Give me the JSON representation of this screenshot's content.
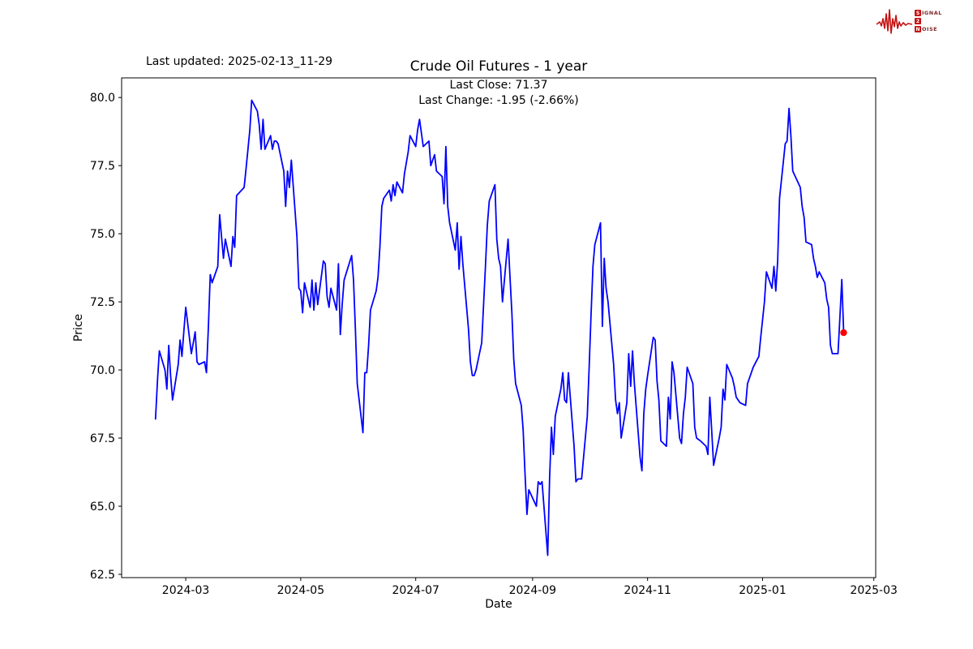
{
  "header": {
    "last_updated": "Last updated: 2025-02-13_11-29"
  },
  "logo": {
    "s": "S",
    "ignal": "IGNAL",
    "two": "2",
    "n": "N",
    "oise": "OISE",
    "color": "#c41212"
  },
  "chart_data": {
    "type": "line",
    "title": "Crude Oil Futures - 1 year",
    "annotations": {
      "last_close": "Last Close: 71.37",
      "last_change": "Last Change: -1.95 (-2.66%)"
    },
    "xlabel": "Date",
    "ylabel": "Price",
    "x_tick_labels": [
      "2024-03",
      "2024-05",
      "2024-07",
      "2024-09",
      "2024-11",
      "2025-01",
      "2025-03"
    ],
    "y_tick_values": [
      62.5,
      65.0,
      67.5,
      70.0,
      72.5,
      75.0,
      77.5,
      80.0
    ],
    "ylim": [
      62.38,
      80.72
    ],
    "xlim": [
      "2024-01-27",
      "2025-03-02"
    ],
    "grid": false,
    "legend": "none",
    "line_color": "#0000ff",
    "marker_color": "#ff0000",
    "last_close": 71.37,
    "last_change": -1.95,
    "last_change_pct": -2.66,
    "series": [
      {
        "name": "Crude Oil Futures",
        "points": [
          [
            "2024-02-14",
            68.2
          ],
          [
            "2024-02-15",
            69.6
          ],
          [
            "2024-02-16",
            70.7
          ],
          [
            "2024-02-19",
            70.0
          ],
          [
            "2024-02-20",
            69.3
          ],
          [
            "2024-02-21",
            70.9
          ],
          [
            "2024-02-22",
            69.8
          ],
          [
            "2024-02-23",
            68.9
          ],
          [
            "2024-02-26",
            70.2
          ],
          [
            "2024-02-27",
            71.1
          ],
          [
            "2024-02-28",
            70.5
          ],
          [
            "2024-02-29",
            71.4
          ],
          [
            "2024-03-01",
            72.3
          ],
          [
            "2024-03-04",
            70.6
          ],
          [
            "2024-03-05",
            71.0
          ],
          [
            "2024-03-06",
            71.4
          ],
          [
            "2024-03-07",
            70.3
          ],
          [
            "2024-03-08",
            70.2
          ],
          [
            "2024-03-11",
            70.3
          ],
          [
            "2024-03-12",
            69.9
          ],
          [
            "2024-03-13",
            71.5
          ],
          [
            "2024-03-14",
            73.5
          ],
          [
            "2024-03-15",
            73.2
          ],
          [
            "2024-03-18",
            73.8
          ],
          [
            "2024-03-19",
            75.7
          ],
          [
            "2024-03-20",
            74.9
          ],
          [
            "2024-03-21",
            74.1
          ],
          [
            "2024-03-22",
            74.8
          ],
          [
            "2024-03-25",
            73.8
          ],
          [
            "2024-03-26",
            74.9
          ],
          [
            "2024-03-27",
            74.5
          ],
          [
            "2024-03-28",
            76.4
          ],
          [
            "2024-04-01",
            76.7
          ],
          [
            "2024-04-02",
            77.4
          ],
          [
            "2024-04-03",
            78.1
          ],
          [
            "2024-04-04",
            78.8
          ],
          [
            "2024-04-05",
            79.9
          ],
          [
            "2024-04-08",
            79.5
          ],
          [
            "2024-04-09",
            79.0
          ],
          [
            "2024-04-10",
            78.1
          ],
          [
            "2024-04-11",
            79.2
          ],
          [
            "2024-04-12",
            78.1
          ],
          [
            "2024-04-15",
            78.6
          ],
          [
            "2024-04-16",
            78.1
          ],
          [
            "2024-04-17",
            78.4
          ],
          [
            "2024-04-18",
            78.4
          ],
          [
            "2024-04-19",
            78.3
          ],
          [
            "2024-04-22",
            77.3
          ],
          [
            "2024-04-23",
            76.0
          ],
          [
            "2024-04-24",
            77.3
          ],
          [
            "2024-04-25",
            76.7
          ],
          [
            "2024-04-26",
            77.7
          ],
          [
            "2024-04-29",
            74.9
          ],
          [
            "2024-04-30",
            73.0
          ],
          [
            "2024-05-01",
            72.9
          ],
          [
            "2024-05-02",
            72.1
          ],
          [
            "2024-05-03",
            73.2
          ],
          [
            "2024-05-06",
            72.3
          ],
          [
            "2024-05-07",
            73.3
          ],
          [
            "2024-05-08",
            72.2
          ],
          [
            "2024-05-09",
            73.2
          ],
          [
            "2024-05-10",
            72.4
          ],
          [
            "2024-05-13",
            74.0
          ],
          [
            "2024-05-14",
            73.9
          ],
          [
            "2024-05-15",
            72.7
          ],
          [
            "2024-05-16",
            72.3
          ],
          [
            "2024-05-17",
            73.0
          ],
          [
            "2024-05-20",
            72.2
          ],
          [
            "2024-05-21",
            73.9
          ],
          [
            "2024-05-22",
            71.3
          ],
          [
            "2024-05-23",
            72.4
          ],
          [
            "2024-05-24",
            73.3
          ],
          [
            "2024-05-28",
            74.2
          ],
          [
            "2024-05-29",
            73.3
          ],
          [
            "2024-05-30",
            71.5
          ],
          [
            "2024-05-31",
            69.5
          ],
          [
            "2024-06-03",
            67.7
          ],
          [
            "2024-06-04",
            69.9
          ],
          [
            "2024-06-05",
            69.9
          ],
          [
            "2024-06-06",
            70.9
          ],
          [
            "2024-06-07",
            72.2
          ],
          [
            "2024-06-10",
            72.9
          ],
          [
            "2024-06-11",
            73.4
          ],
          [
            "2024-06-12",
            74.5
          ],
          [
            "2024-06-13",
            76.0
          ],
          [
            "2024-06-14",
            76.3
          ],
          [
            "2024-06-17",
            76.6
          ],
          [
            "2024-06-18",
            76.2
          ],
          [
            "2024-06-19",
            76.8
          ],
          [
            "2024-06-20",
            76.4
          ],
          [
            "2024-06-21",
            76.9
          ],
          [
            "2024-06-24",
            76.5
          ],
          [
            "2024-06-25",
            77.2
          ],
          [
            "2024-06-26",
            77.6
          ],
          [
            "2024-06-27",
            78.0
          ],
          [
            "2024-06-28",
            78.6
          ],
          [
            "2024-07-01",
            78.2
          ],
          [
            "2024-07-02",
            78.8
          ],
          [
            "2024-07-03",
            79.2
          ],
          [
            "2024-07-05",
            78.2
          ],
          [
            "2024-07-08",
            78.4
          ],
          [
            "2024-07-09",
            77.5
          ],
          [
            "2024-07-10",
            77.7
          ],
          [
            "2024-07-11",
            77.9
          ],
          [
            "2024-07-12",
            77.3
          ],
          [
            "2024-07-15",
            77.1
          ],
          [
            "2024-07-16",
            76.1
          ],
          [
            "2024-07-17",
            78.2
          ],
          [
            "2024-07-18",
            76.0
          ],
          [
            "2024-07-19",
            75.4
          ],
          [
            "2024-07-22",
            74.4
          ],
          [
            "2024-07-23",
            75.4
          ],
          [
            "2024-07-24",
            73.7
          ],
          [
            "2024-07-25",
            74.9
          ],
          [
            "2024-07-26",
            73.9
          ],
          [
            "2024-07-29",
            71.5
          ],
          [
            "2024-07-30",
            70.3
          ],
          [
            "2024-07-31",
            69.8
          ],
          [
            "2024-08-01",
            69.8
          ],
          [
            "2024-08-02",
            70.0
          ],
          [
            "2024-08-05",
            71.0
          ],
          [
            "2024-08-06",
            72.4
          ],
          [
            "2024-08-07",
            73.8
          ],
          [
            "2024-08-08",
            75.3
          ],
          [
            "2024-08-09",
            76.2
          ],
          [
            "2024-08-12",
            76.8
          ],
          [
            "2024-08-13",
            74.8
          ],
          [
            "2024-08-14",
            74.1
          ],
          [
            "2024-08-15",
            73.8
          ],
          [
            "2024-08-16",
            72.5
          ],
          [
            "2024-08-19",
            74.8
          ],
          [
            "2024-08-20",
            73.4
          ],
          [
            "2024-08-21",
            72.1
          ],
          [
            "2024-08-22",
            70.4
          ],
          [
            "2024-08-23",
            69.5
          ],
          [
            "2024-08-26",
            68.7
          ],
          [
            "2024-08-27",
            67.8
          ],
          [
            "2024-08-28",
            66.2
          ],
          [
            "2024-08-29",
            64.7
          ],
          [
            "2024-08-30",
            65.6
          ],
          [
            "2024-09-03",
            65.0
          ],
          [
            "2024-09-04",
            65.9
          ],
          [
            "2024-09-05",
            65.8
          ],
          [
            "2024-09-06",
            65.9
          ],
          [
            "2024-09-09",
            63.2
          ],
          [
            "2024-09-10",
            66.0
          ],
          [
            "2024-09-11",
            67.9
          ],
          [
            "2024-09-12",
            66.9
          ],
          [
            "2024-09-13",
            68.3
          ],
          [
            "2024-09-16",
            69.3
          ],
          [
            "2024-09-17",
            69.9
          ],
          [
            "2024-09-18",
            68.9
          ],
          [
            "2024-09-19",
            68.8
          ],
          [
            "2024-09-20",
            69.9
          ],
          [
            "2024-09-23",
            67.2
          ],
          [
            "2024-09-24",
            65.9
          ],
          [
            "2024-09-25",
            66.0
          ],
          [
            "2024-09-26",
            66.0
          ],
          [
            "2024-09-27",
            66.0
          ],
          [
            "2024-09-30",
            68.3
          ],
          [
            "2024-10-01",
            70.1
          ],
          [
            "2024-10-02",
            72.0
          ],
          [
            "2024-10-03",
            73.8
          ],
          [
            "2024-10-04",
            74.6
          ],
          [
            "2024-10-07",
            75.4
          ],
          [
            "2024-10-08",
            71.6
          ],
          [
            "2024-10-09",
            74.1
          ],
          [
            "2024-10-10",
            73.0
          ],
          [
            "2024-10-11",
            72.5
          ],
          [
            "2024-10-14",
            70.2
          ],
          [
            "2024-10-15",
            68.9
          ],
          [
            "2024-10-16",
            68.4
          ],
          [
            "2024-10-17",
            68.8
          ],
          [
            "2024-10-18",
            67.5
          ],
          [
            "2024-10-21",
            68.8
          ],
          [
            "2024-10-22",
            70.6
          ],
          [
            "2024-10-23",
            69.4
          ],
          [
            "2024-10-24",
            70.7
          ],
          [
            "2024-10-25",
            69.5
          ],
          [
            "2024-10-28",
            66.8
          ],
          [
            "2024-10-29",
            66.3
          ],
          [
            "2024-10-30",
            68.4
          ],
          [
            "2024-10-31",
            69.3
          ],
          [
            "2024-11-01",
            69.8
          ],
          [
            "2024-11-04",
            71.2
          ],
          [
            "2024-11-05",
            71.1
          ],
          [
            "2024-11-06",
            69.6
          ],
          [
            "2024-11-07",
            68.9
          ],
          [
            "2024-11-08",
            67.4
          ],
          [
            "2024-11-11",
            67.2
          ],
          [
            "2024-11-12",
            69.0
          ],
          [
            "2024-11-13",
            68.2
          ],
          [
            "2024-11-14",
            70.3
          ],
          [
            "2024-11-15",
            69.9
          ],
          [
            "2024-11-18",
            67.5
          ],
          [
            "2024-11-19",
            67.3
          ],
          [
            "2024-11-20",
            68.4
          ],
          [
            "2024-11-21",
            69.0
          ],
          [
            "2024-11-22",
            70.1
          ],
          [
            "2024-11-25",
            69.5
          ],
          [
            "2024-11-26",
            67.9
          ],
          [
            "2024-11-27",
            67.5
          ],
          [
            "2024-11-29",
            67.4
          ],
          [
            "2024-12-02",
            67.2
          ],
          [
            "2024-12-03",
            66.9
          ],
          [
            "2024-12-04",
            69.0
          ],
          [
            "2024-12-05",
            67.8
          ],
          [
            "2024-12-06",
            66.5
          ],
          [
            "2024-12-09",
            67.5
          ],
          [
            "2024-12-10",
            67.9
          ],
          [
            "2024-12-11",
            69.3
          ],
          [
            "2024-12-12",
            68.9
          ],
          [
            "2024-12-13",
            70.2
          ],
          [
            "2024-12-16",
            69.7
          ],
          [
            "2024-12-17",
            69.4
          ],
          [
            "2024-12-18",
            69.0
          ],
          [
            "2024-12-19",
            68.9
          ],
          [
            "2024-12-20",
            68.8
          ],
          [
            "2024-12-23",
            68.7
          ],
          [
            "2024-12-24",
            69.5
          ],
          [
            "2024-12-26",
            69.9
          ],
          [
            "2024-12-27",
            70.1
          ],
          [
            "2024-12-30",
            70.5
          ],
          [
            "2024-12-31",
            71.2
          ],
          [
            "2025-01-02",
            72.5
          ],
          [
            "2025-01-03",
            73.6
          ],
          [
            "2025-01-06",
            73.0
          ],
          [
            "2025-01-07",
            73.8
          ],
          [
            "2025-01-08",
            72.9
          ],
          [
            "2025-01-09",
            74.0
          ],
          [
            "2025-01-10",
            76.3
          ],
          [
            "2025-01-13",
            78.3
          ],
          [
            "2025-01-14",
            78.4
          ],
          [
            "2025-01-15",
            79.6
          ],
          [
            "2025-01-16",
            78.6
          ],
          [
            "2025-01-17",
            77.3
          ],
          [
            "2025-01-21",
            76.7
          ],
          [
            "2025-01-22",
            76.0
          ],
          [
            "2025-01-23",
            75.6
          ],
          [
            "2025-01-24",
            74.7
          ],
          [
            "2025-01-27",
            74.6
          ],
          [
            "2025-01-28",
            74.1
          ],
          [
            "2025-01-29",
            73.8
          ],
          [
            "2025-01-30",
            73.4
          ],
          [
            "2025-01-31",
            73.6
          ],
          [
            "2025-02-03",
            73.2
          ],
          [
            "2025-02-04",
            72.6
          ],
          [
            "2025-02-05",
            72.3
          ],
          [
            "2025-02-06",
            70.9
          ],
          [
            "2025-02-07",
            70.6
          ],
          [
            "2025-02-10",
            70.6
          ],
          [
            "2025-02-11",
            71.9
          ],
          [
            "2025-02-12",
            73.32
          ],
          [
            "2025-02-13",
            71.37
          ]
        ]
      }
    ]
  }
}
